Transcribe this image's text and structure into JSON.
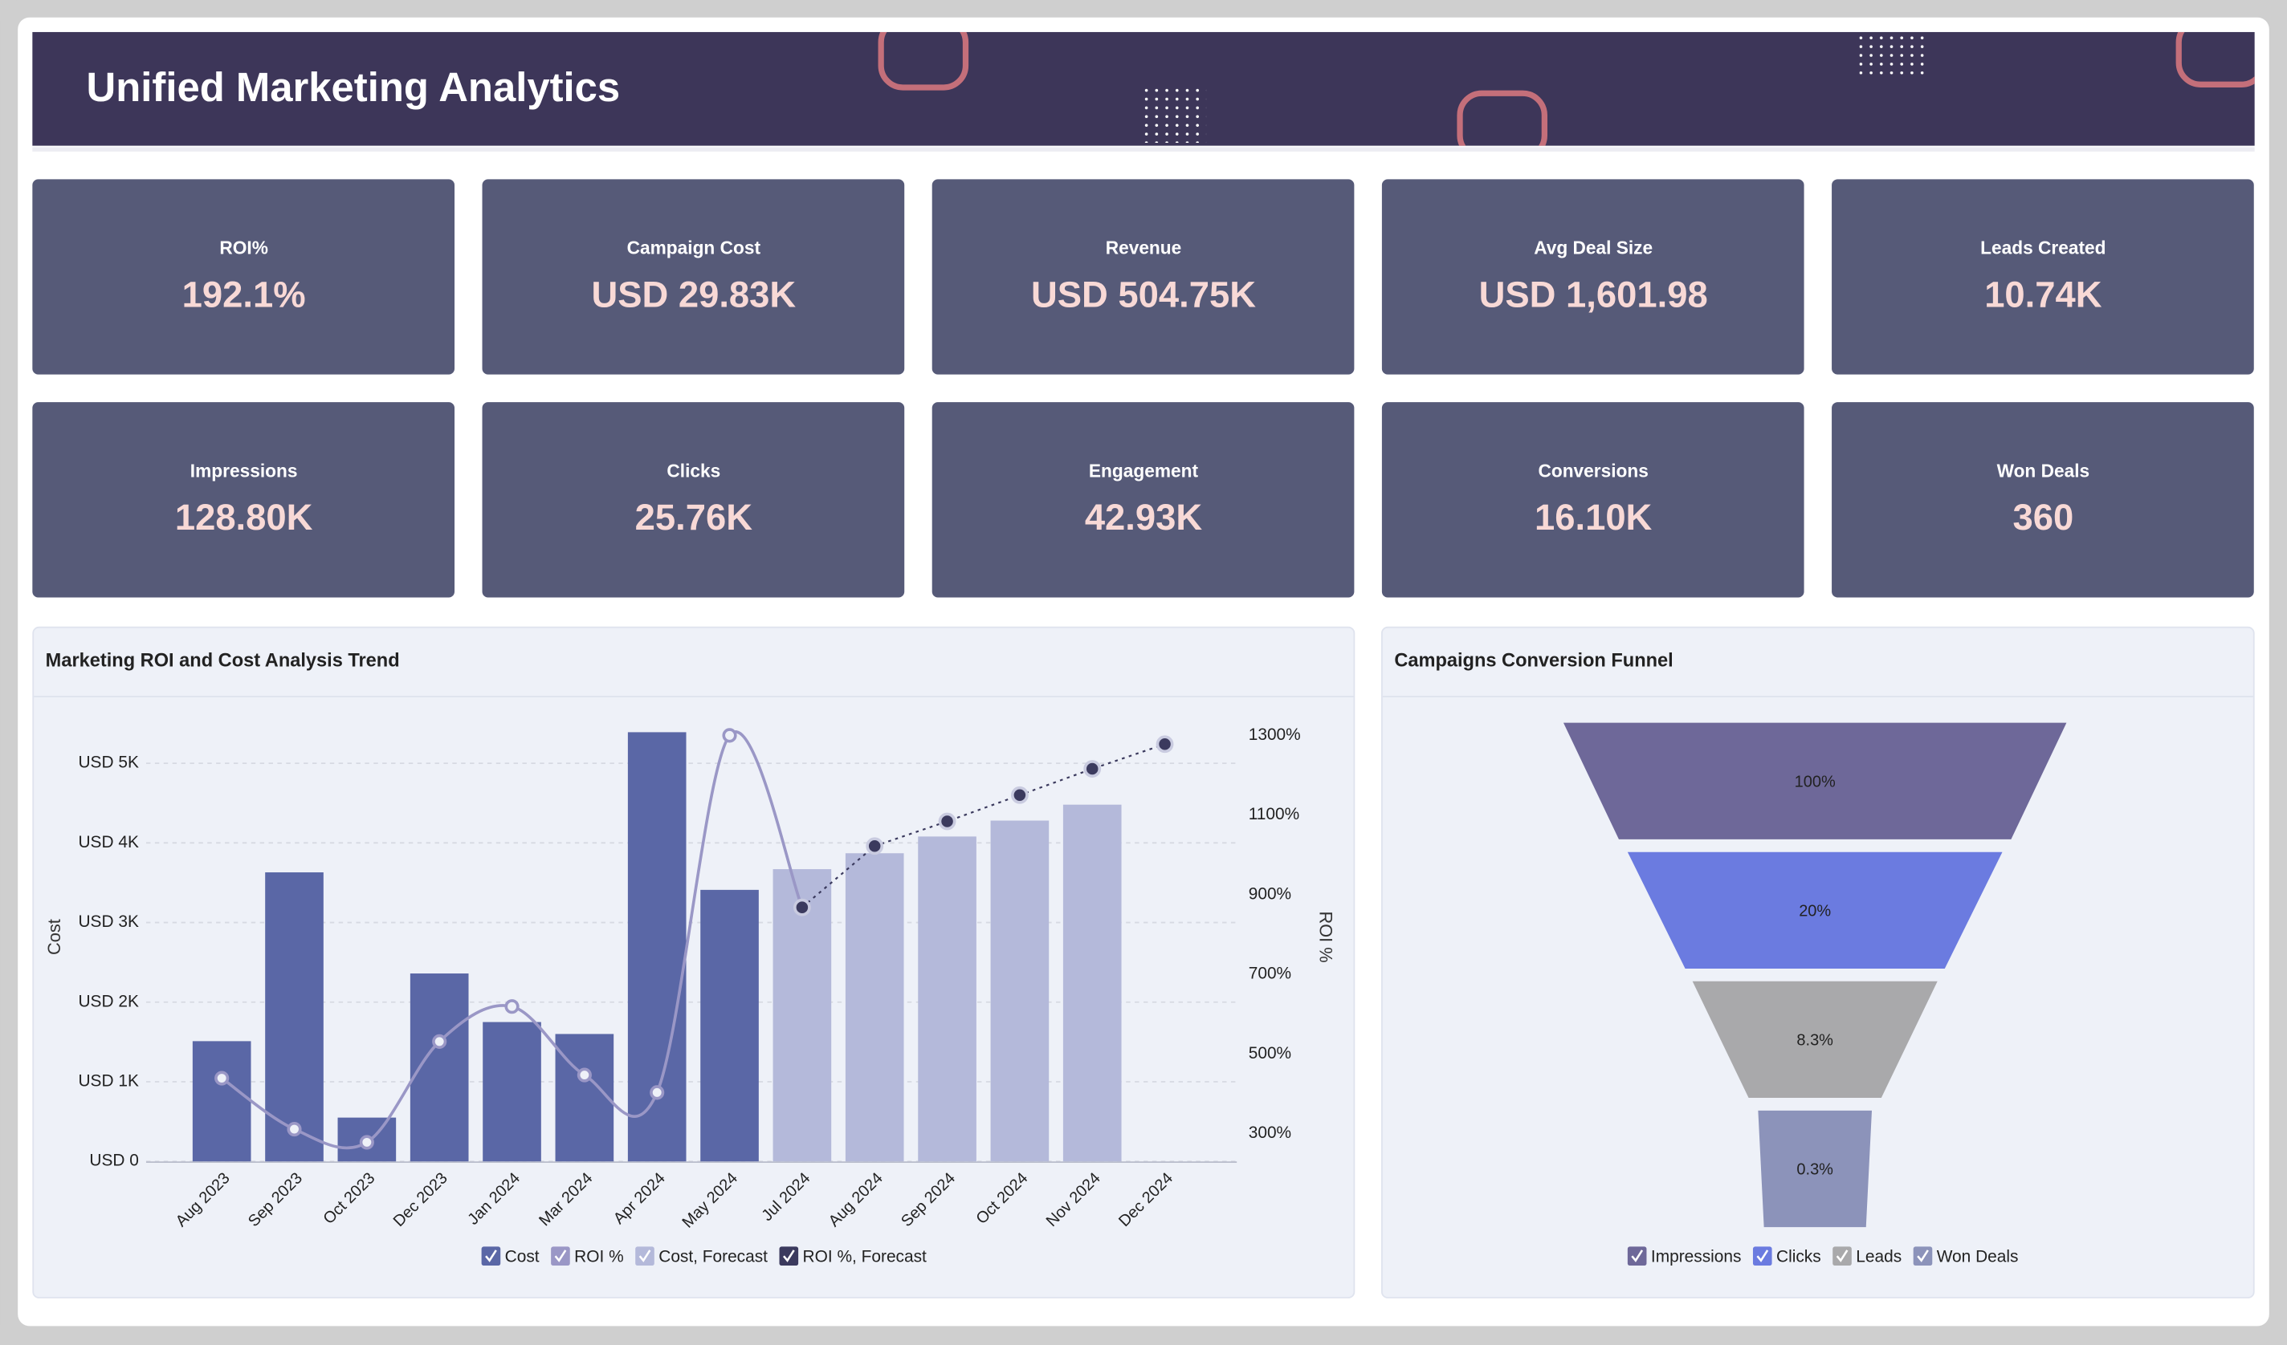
{
  "header": {
    "title": "Unified Marketing Analytics"
  },
  "kpis": [
    {
      "label": "ROI%",
      "value": "192.1%"
    },
    {
      "label": "Campaign Cost",
      "value": "USD 29.83K"
    },
    {
      "label": "Revenue",
      "value": "USD 504.75K"
    },
    {
      "label": "Avg Deal Size",
      "value": "USD 1,601.98"
    },
    {
      "label": "Leads Created",
      "value": "10.74K"
    },
    {
      "label": "Impressions",
      "value": "128.80K"
    },
    {
      "label": "Clicks",
      "value": "25.76K"
    },
    {
      "label": "Engagement",
      "value": "42.93K"
    },
    {
      "label": "Conversions",
      "value": "16.10K"
    },
    {
      "label": "Won Deals",
      "value": "360"
    }
  ],
  "chart_data": [
    {
      "type": "combo",
      "title": "Marketing ROI and Cost Analysis Trend",
      "y_label": "Cost",
      "y2_label": "ROI %",
      "categories": [
        "Aug 2023",
        "Sep 2023",
        "Oct 2023",
        "Dec 2023",
        "Jan 2024",
        "Mar 2024",
        "Apr 2024",
        "May 2024",
        "Jul 2024",
        "Aug 2024",
        "Sep 2024",
        "Oct 2024",
        "Nov 2024",
        "Dec 2024"
      ],
      "series": [
        {
          "name": "Cost",
          "type": "bar",
          "axis": "y",
          "color": "#5a67a6",
          "values": [
            1510,
            3630,
            550,
            2360,
            1750,
            1600,
            5390,
            3410,
            null,
            null,
            null,
            null,
            null,
            null
          ]
        },
        {
          "name": "ROI %",
          "type": "line",
          "axis": "y2",
          "color": "#9a97c6",
          "values": [
            439,
            311,
            278,
            531,
            619,
            447,
            403,
            1300,
            868,
            null,
            null,
            null,
            null,
            null
          ]
        },
        {
          "name": "Cost, Forecast",
          "type": "bar",
          "axis": "y",
          "color": "#b4b9da",
          "values": [
            null,
            null,
            null,
            null,
            null,
            null,
            null,
            null,
            3670,
            3870,
            4080,
            4280,
            4480,
            null
          ]
        },
        {
          "name": "ROI %, Forecast",
          "type": "line",
          "axis": "y2",
          "dashed": true,
          "color": "#3b3a5e",
          "values": [
            null,
            null,
            null,
            null,
            null,
            null,
            null,
            null,
            868,
            1022,
            1084,
            1150,
            1216,
            1278
          ]
        }
      ],
      "ylim": [
        0,
        5600
      ],
      "yticks": [
        {
          "value": 0,
          "label": "USD 0"
        },
        {
          "value": 1000,
          "label": "USD 1K"
        },
        {
          "value": 2000,
          "label": "USD 2K"
        },
        {
          "value": 3000,
          "label": "USD 3K"
        },
        {
          "value": 4000,
          "label": "USD 4K"
        },
        {
          "value": 5000,
          "label": "USD 5K"
        }
      ],
      "y2lim": [
        230,
        1350
      ],
      "y2ticks": [
        {
          "value": 300,
          "label": "300%"
        },
        {
          "value": 500,
          "label": "500%"
        },
        {
          "value": 700,
          "label": "700%"
        },
        {
          "value": 900,
          "label": "900%"
        },
        {
          "value": 1100,
          "label": "1100%"
        },
        {
          "value": 1300,
          "label": "1300%"
        }
      ],
      "grid": true,
      "legend": "bottom"
    },
    {
      "type": "funnel",
      "title": "Campaigns Conversion Funnel",
      "categories": [
        "Impressions",
        "Clicks",
        "Leads",
        "Won Deals"
      ],
      "values": [
        100,
        20,
        8.3,
        0.3
      ],
      "value_labels": [
        "100%",
        "20%",
        "8.3%",
        "0.3%"
      ],
      "colors": [
        "#6e6899",
        "#6b7be0",
        "#a9a9ab",
        "#8c93ba"
      ],
      "legend": "bottom"
    }
  ]
}
